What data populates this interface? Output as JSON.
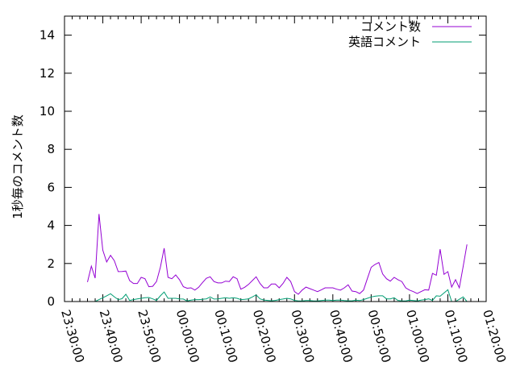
{
  "chart_data": {
    "type": "line",
    "title": "",
    "xlabel": "",
    "ylabel": "1秒毎のコメント数",
    "ylim": [
      0,
      15
    ],
    "yticks": [
      "0",
      "2",
      "4",
      "6",
      "8",
      "10",
      "12",
      "14"
    ],
    "xlim": [
      "23:30:00",
      "01:20:00"
    ],
    "xticks": [
      "23:30:00",
      "23:40:00",
      "23:50:00",
      "00:00:00",
      "00:10:00",
      "00:20:00",
      "00:30:00",
      "00:40:00",
      "00:50:00",
      "01:00:00",
      "01:10:00",
      "01:20:00"
    ],
    "grid": false,
    "legend_position": "top-right",
    "x": [
      "23:36:00",
      "23:37:00",
      "23:38:00",
      "23:39:00",
      "23:40:00",
      "23:41:00",
      "23:42:00",
      "23:43:00",
      "23:44:00",
      "23:45:00",
      "23:46:00",
      "23:47:00",
      "23:48:00",
      "23:49:00",
      "23:50:00",
      "23:51:00",
      "23:52:00",
      "23:53:00",
      "23:54:00",
      "23:55:00",
      "23:56:00",
      "23:57:00",
      "23:58:00",
      "23:59:00",
      "00:00:00",
      "00:01:00",
      "00:02:00",
      "00:03:00",
      "00:04:00",
      "00:05:00",
      "00:06:00",
      "00:07:00",
      "00:08:00",
      "00:09:00",
      "00:10:00",
      "00:11:00",
      "00:12:00",
      "00:13:00",
      "00:14:00",
      "00:15:00",
      "00:16:00",
      "00:17:00",
      "00:18:00",
      "00:19:00",
      "00:20:00",
      "00:21:00",
      "00:22:00",
      "00:23:00",
      "00:24:00",
      "00:25:00",
      "00:26:00",
      "00:27:00",
      "00:28:00",
      "00:29:00",
      "00:30:00",
      "00:31:00",
      "00:32:00",
      "00:33:00",
      "00:34:00",
      "00:35:00",
      "00:36:00",
      "00:37:00",
      "00:38:00",
      "00:39:00",
      "00:40:00",
      "00:41:00",
      "00:42:00",
      "00:43:00",
      "00:44:00",
      "00:45:00",
      "00:46:00",
      "00:47:00",
      "00:48:00",
      "00:49:00",
      "00:50:00",
      "00:51:00",
      "00:52:00",
      "00:53:00",
      "00:54:00",
      "00:55:00",
      "00:56:00",
      "00:57:00",
      "00:58:00",
      "00:59:00",
      "01:00:00",
      "01:01:00",
      "01:02:00",
      "01:03:00",
      "01:04:00",
      "01:05:00",
      "01:06:00",
      "01:07:00",
      "01:08:00",
      "01:09:00",
      "01:10:00",
      "01:11:00",
      "01:12:00",
      "01:13:00",
      "01:14:00",
      "01:15:00"
    ],
    "series": [
      {
        "name": "コメント数",
        "color": "#9400d3",
        "values": [
          1.02,
          1.86,
          1.23,
          4.6,
          2.7,
          2.08,
          2.43,
          2.15,
          1.57,
          1.58,
          1.6,
          1.1,
          0.95,
          0.95,
          1.27,
          1.2,
          0.78,
          0.8,
          1.05,
          1.8,
          2.8,
          1.27,
          1.2,
          1.4,
          1.15,
          0.78,
          0.7,
          0.72,
          0.6,
          0.75,
          1.0,
          1.22,
          1.3,
          1.05,
          0.98,
          0.98,
          1.07,
          1.05,
          1.3,
          1.2,
          0.65,
          0.75,
          0.9,
          1.1,
          1.3,
          0.95,
          0.72,
          0.72,
          0.92,
          0.92,
          0.72,
          0.95,
          1.27,
          1.05,
          0.52,
          0.38,
          0.6,
          0.76,
          0.68,
          0.6,
          0.52,
          0.62,
          0.72,
          0.72,
          0.72,
          0.65,
          0.6,
          0.72,
          0.88,
          0.55,
          0.52,
          0.42,
          0.6,
          1.2,
          1.8,
          1.95,
          2.05,
          1.45,
          1.2,
          1.07,
          1.27,
          1.15,
          1.05,
          0.72,
          0.6,
          0.52,
          0.42,
          0.52,
          0.62,
          0.6,
          1.48,
          1.38,
          2.75,
          1.43,
          1.57,
          0.76,
          1.15,
          0.72,
          1.85,
          3.0
        ]
      },
      {
        "name": "英語コメント",
        "color": "#009e73",
        "values": [
          null,
          null,
          0,
          0.1,
          0.2,
          0.3,
          0.41,
          0.25,
          0.1,
          0.15,
          0.38,
          0.06,
          0.1,
          0.14,
          0.17,
          0.2,
          0.21,
          0.14,
          0.06,
          0.3,
          0.5,
          0.17,
          0.17,
          0.17,
          0.14,
          0.13,
          0.03,
          0.07,
          0.1,
          0.1,
          0.12,
          0.14,
          0.24,
          0.13,
          0.14,
          0.17,
          0.2,
          0.17,
          0.2,
          0.17,
          0.1,
          0.12,
          0.14,
          0.24,
          0.35,
          0.14,
          0.08,
          0.06,
          0.04,
          0.06,
          0.1,
          0.13,
          0.17,
          0.14,
          0.06,
          0.03,
          0.03,
          0.05,
          0.05,
          0.03,
          0.03,
          0.05,
          0.07,
          0.07,
          0.05,
          0.07,
          0.07,
          0.05,
          0.04,
          0.04,
          0.07,
          0.05,
          0.1,
          0.17,
          0.24,
          0.28,
          0.3,
          0.3,
          0.14,
          0.14,
          0.2,
          0.06,
          0.03,
          0.03,
          0.07,
          0.05,
          0.03,
          0.07,
          0.1,
          0.14,
          0.06,
          0.3,
          0.28,
          0.45,
          0.62,
          0,
          0,
          0.12,
          0.24,
          0
        ]
      }
    ]
  }
}
